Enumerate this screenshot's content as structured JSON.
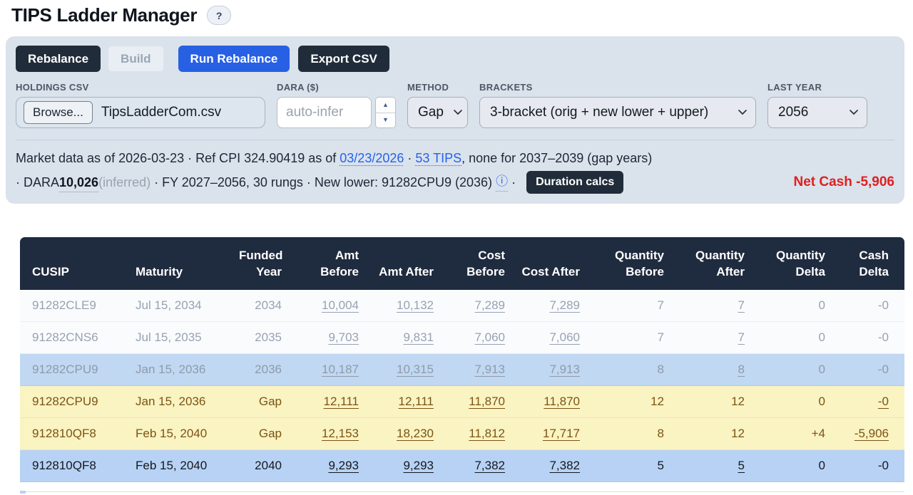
{
  "page": {
    "title": "TIPS Ladder Manager",
    "help_label": "?"
  },
  "toolbar": {
    "buttons": [
      {
        "label": "Rebalance",
        "style": "dark"
      },
      {
        "label": "Build",
        "style": "disabled"
      },
      {
        "label": "Run Rebalance",
        "style": "primary"
      },
      {
        "label": "Export CSV",
        "style": "dark"
      }
    ]
  },
  "form": {
    "holdings": {
      "label": "HOLDINGS CSV",
      "browse_label": "Browse...",
      "filename": "TipsLadderCom.csv"
    },
    "dara": {
      "label": "DARA ($)",
      "placeholder": "auto-infer"
    },
    "method": {
      "label": "METHOD",
      "value": "Gap"
    },
    "brackets": {
      "label": "BRACKETS",
      "value": "3-bracket (orig + new lower + upper)"
    },
    "last_year": {
      "label": "LAST YEAR",
      "value": "2056"
    }
  },
  "status": {
    "line1": {
      "text1": "Market data as of 2026-03-23 · Ref CPI 324.90419 as of ",
      "date_link": "03/23/2026",
      "sep": " · ",
      "tips_link": "53 TIPS",
      "text2": ", none for 2037–2039 (gap years)"
    },
    "line2": {
      "text1": "· DARA ",
      "dara_value": "10,026",
      "inferred": " (inferred)",
      "text2": " · FY 2027–2056, 30 rungs · New lower: 91282CPU9 (2036) ",
      "info_icon": "ⓘ",
      "sep": " · ",
      "duration_button": "Duration calcs"
    },
    "net_cash": "Net Cash -5,906"
  },
  "colors": {
    "accent_blue": "#2760e3",
    "dark_navy": "#212c3a",
    "panel_bg": "#dae2ec",
    "net_cash_red": "#df2020",
    "gap_row_yellow": "#faf3c2",
    "funded_row_blue": "#b7d2f4",
    "muted_row_blue": "#c0d8f2",
    "link_blue": "#2563eb"
  },
  "table": {
    "columns": [
      "CUSIP",
      "Maturity",
      "Funded Year",
      "Amt Before",
      "Amt After",
      "Cost Before",
      "Cost After",
      "Quantity Before",
      "Quantity After",
      "Quantity Delta",
      "Cash Delta"
    ],
    "rows": [
      {
        "style": "muted",
        "cells": [
          {
            "v": "91282CLE9"
          },
          {
            "v": "Jul 15, 2034"
          },
          {
            "v": "2034"
          },
          {
            "v": "10,004",
            "u": true
          },
          {
            "v": "10,132",
            "u": true
          },
          {
            "v": "7,289",
            "u": true
          },
          {
            "v": "7,289",
            "u": true
          },
          {
            "v": "7"
          },
          {
            "v": "7",
            "u": true
          },
          {
            "v": "0"
          },
          {
            "v": "-0"
          }
        ]
      },
      {
        "style": "muted",
        "cells": [
          {
            "v": "91282CNS6"
          },
          {
            "v": "Jul 15, 2035"
          },
          {
            "v": "2035"
          },
          {
            "v": "9,703",
            "u": true
          },
          {
            "v": "9,831",
            "u": true
          },
          {
            "v": "7,060",
            "u": true
          },
          {
            "v": "7,060",
            "u": true
          },
          {
            "v": "7"
          },
          {
            "v": "7",
            "u": true
          },
          {
            "v": "0"
          },
          {
            "v": "-0"
          }
        ]
      },
      {
        "style": "muted-blue",
        "cells": [
          {
            "v": "91282CPU9"
          },
          {
            "v": "Jan 15, 2036"
          },
          {
            "v": "2036"
          },
          {
            "v": "10,187",
            "u": true
          },
          {
            "v": "10,315",
            "u": true
          },
          {
            "v": "7,913",
            "u": true
          },
          {
            "v": "7,913",
            "u": true
          },
          {
            "v": "8"
          },
          {
            "v": "8",
            "u": true
          },
          {
            "v": "0"
          },
          {
            "v": "-0"
          }
        ]
      },
      {
        "style": "gap-yellow",
        "cells": [
          {
            "v": "91282CPU9"
          },
          {
            "v": "Jan 15, 2036"
          },
          {
            "v": "Gap"
          },
          {
            "v": "12,111",
            "u": true
          },
          {
            "v": "12,111",
            "u": true
          },
          {
            "v": "11,870",
            "u": true
          },
          {
            "v": "11,870",
            "u": true
          },
          {
            "v": "12"
          },
          {
            "v": "12"
          },
          {
            "v": "0"
          },
          {
            "v": "-0",
            "u": true
          }
        ]
      },
      {
        "style": "gap-yellow",
        "cells": [
          {
            "v": "912810QF8"
          },
          {
            "v": "Feb 15, 2040"
          },
          {
            "v": "Gap"
          },
          {
            "v": "12,153",
            "u": true
          },
          {
            "v": "18,230",
            "u": true
          },
          {
            "v": "11,812",
            "u": true
          },
          {
            "v": "17,717",
            "u": true
          },
          {
            "v": "8"
          },
          {
            "v": "12"
          },
          {
            "v": "+4"
          },
          {
            "v": "-5,906",
            "u": true
          }
        ]
      },
      {
        "style": "funded-blue",
        "cells": [
          {
            "v": "912810QF8"
          },
          {
            "v": "Feb 15, 2040"
          },
          {
            "v": "2040"
          },
          {
            "v": "9,293",
            "u": true
          },
          {
            "v": "9,293",
            "u": true
          },
          {
            "v": "7,382",
            "u": true
          },
          {
            "v": "7,382",
            "u": true
          },
          {
            "v": "5"
          },
          {
            "v": "5",
            "u": true
          },
          {
            "v": "0"
          },
          {
            "v": "-0"
          }
        ]
      }
    ]
  }
}
